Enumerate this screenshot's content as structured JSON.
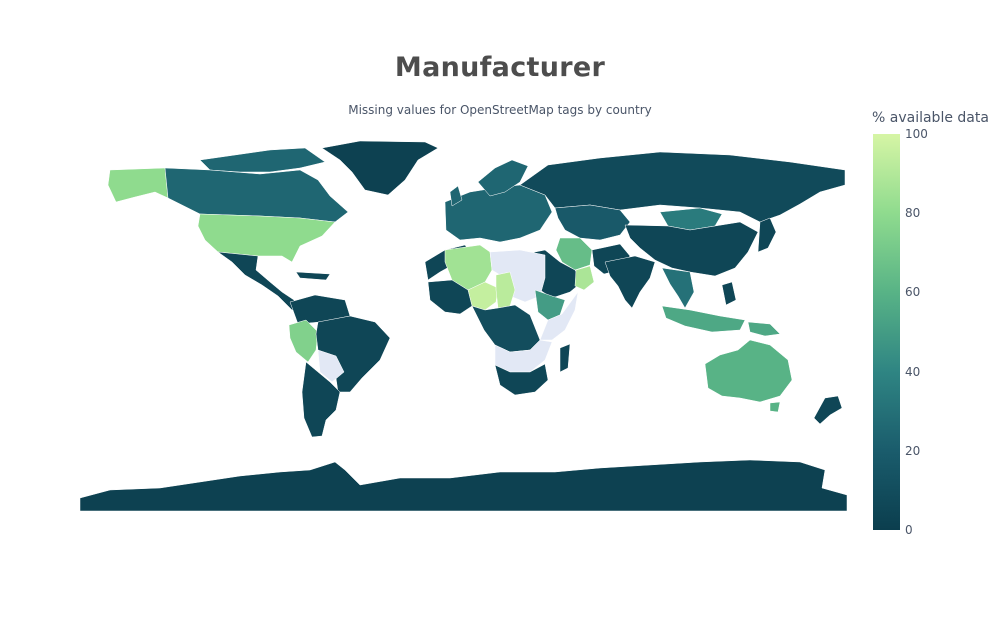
{
  "title": "Manufacturer",
  "subtitle": "Missing values for OpenStreetMap tags by country",
  "colorbar": {
    "title": "% available data",
    "ticks": [
      "100",
      "80",
      "60",
      "40",
      "20",
      "0"
    ],
    "range": [
      0,
      100
    ],
    "colorscale": [
      "#0b3e4e",
      "#1a5c6c",
      "#2f8583",
      "#58b386",
      "#8fdb8e",
      "#d6f5a5"
    ],
    "no_data_color": "#e2e8f5"
  },
  "chart_data": {
    "type": "choropleth",
    "projection": "miller",
    "value_label": "% available data",
    "values": {
      "USA": 80,
      "Alaska": 80,
      "Canada": 25,
      "Greenland": 2,
      "Mexico": 5,
      "Peru": 75,
      "Brazil": 5,
      "Argentina": 5,
      "Chile": 5,
      "Algeria": 85,
      "Niger": 95,
      "Chad": 92,
      "Nigeria": 10,
      "Oman": 88,
      "Ethiopia": 50,
      "Iran": 65,
      "Mongolia": 35,
      "Russia": 8,
      "China": 5,
      "India": 5,
      "Indonesia": 55,
      "Papua New Guinea": 55,
      "Australia": 60,
      "New Zealand": 5,
      "Antarctica": 2,
      "Kazakhstan": 18,
      "Madagascar": 5,
      "Southern Africa": 5,
      "Europe": 25,
      "Japan": 5,
      "Vietnam": 30
    },
    "no_data": [
      "Libya",
      "Sudan",
      "Angola",
      "Zambia",
      "Somalia",
      "Kenya",
      "Bolivia",
      "Paraguay"
    ]
  }
}
